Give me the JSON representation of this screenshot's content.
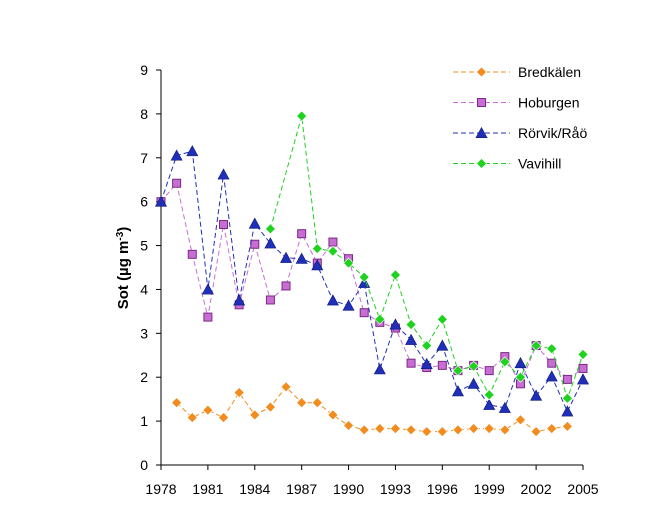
{
  "chart_data": {
    "type": "line",
    "title": "",
    "ylabel": "Sot (µg m-3)",
    "ylabel_parts": {
      "main": "Sot (µg m",
      "sup": "-3",
      "close": ")"
    },
    "xlabel": "",
    "xlim": [
      1978,
      2005
    ],
    "ylim": [
      0,
      9
    ],
    "x_ticks": [
      1978,
      1981,
      1984,
      1987,
      1990,
      1993,
      1996,
      1999,
      2002,
      2005
    ],
    "y_ticks": [
      0,
      1,
      2,
      3,
      4,
      5,
      6,
      7,
      8,
      9
    ],
    "grid": false,
    "legend_position": "top-right",
    "series": [
      {
        "name": "Bredkälen",
        "color": "#f28c1e",
        "marker": "diamond",
        "points": [
          [
            1979,
            1.42
          ],
          [
            1980,
            1.08
          ],
          [
            1981,
            1.25
          ],
          [
            1982,
            1.08
          ],
          [
            1983,
            1.65
          ],
          [
            1984,
            1.14
          ],
          [
            1985,
            1.32
          ],
          [
            1986,
            1.78
          ],
          [
            1987,
            1.42
          ],
          [
            1988,
            1.42
          ],
          [
            1989,
            1.14
          ],
          [
            1990,
            0.9
          ],
          [
            1991,
            0.8
          ],
          [
            1992,
            0.83
          ],
          [
            1993,
            0.83
          ],
          [
            1994,
            0.8
          ],
          [
            1995,
            0.76
          ],
          [
            1996,
            0.76
          ],
          [
            1997,
            0.8
          ],
          [
            1998,
            0.83
          ],
          [
            1999,
            0.83
          ],
          [
            2000,
            0.8
          ],
          [
            2001,
            1.03
          ],
          [
            2002,
            0.76
          ],
          [
            2003,
            0.83
          ],
          [
            2004,
            0.88
          ]
        ]
      },
      {
        "name": "Hoburgen",
        "color": "#c86ed2",
        "marker": "square",
        "points": [
          [
            1978,
            6.0
          ],
          [
            1979,
            6.42
          ],
          [
            1980,
            4.8
          ],
          [
            1981,
            3.37
          ],
          [
            1982,
            5.48
          ],
          [
            1983,
            3.65
          ],
          [
            1984,
            5.03
          ],
          [
            1985,
            3.76
          ],
          [
            1986,
            4.08
          ],
          [
            1987,
            5.27
          ],
          [
            1988,
            4.6
          ],
          [
            1989,
            5.08
          ],
          [
            1990,
            4.7
          ],
          [
            1991,
            3.47
          ],
          [
            1992,
            3.25
          ],
          [
            1993,
            3.12
          ],
          [
            1994,
            2.32
          ],
          [
            1995,
            2.22
          ],
          [
            1996,
            2.27
          ],
          [
            1997,
            2.15
          ],
          [
            1998,
            2.27
          ],
          [
            1999,
            2.15
          ],
          [
            2000,
            2.47
          ],
          [
            2001,
            1.85
          ],
          [
            2002,
            2.72
          ],
          [
            2003,
            2.32
          ],
          [
            2004,
            1.95
          ],
          [
            2005,
            2.2
          ]
        ]
      },
      {
        "name": "Rörvik/Råö",
        "color": "#1f2fb8",
        "marker": "triangle",
        "points": [
          [
            1978,
            6.0
          ],
          [
            1979,
            7.05
          ],
          [
            1980,
            7.15
          ],
          [
            1981,
            4.0
          ],
          [
            1982,
            6.62
          ],
          [
            1983,
            3.75
          ],
          [
            1984,
            5.5
          ],
          [
            1985,
            5.05
          ],
          [
            1986,
            4.72
          ],
          [
            1987,
            4.7
          ],
          [
            1988,
            4.55
          ],
          [
            1989,
            3.75
          ],
          [
            1990,
            3.63
          ],
          [
            1991,
            4.15
          ],
          [
            1992,
            2.18
          ],
          [
            1993,
            3.2
          ],
          [
            1994,
            2.85
          ],
          [
            1995,
            2.3
          ],
          [
            1996,
            2.72
          ],
          [
            1997,
            1.68
          ],
          [
            1998,
            1.85
          ],
          [
            1999,
            1.37
          ],
          [
            2000,
            1.3
          ],
          [
            2001,
            2.32
          ],
          [
            2002,
            1.58
          ],
          [
            2003,
            2.02
          ],
          [
            2004,
            1.22
          ],
          [
            2005,
            1.95
          ]
        ]
      },
      {
        "name": "Vavihill",
        "color": "#1fd21f",
        "marker": "diamond",
        "points": [
          [
            1985,
            5.38
          ],
          [
            1987,
            7.95
          ],
          [
            1988,
            4.93
          ],
          [
            1989,
            4.87
          ],
          [
            1990,
            4.6
          ],
          [
            1991,
            4.28
          ],
          [
            1992,
            3.32
          ],
          [
            1993,
            4.33
          ],
          [
            1994,
            3.2
          ],
          [
            1995,
            2.72
          ],
          [
            1996,
            3.32
          ],
          [
            1997,
            2.15
          ],
          [
            1998,
            2.25
          ],
          [
            1999,
            1.6
          ],
          [
            2000,
            2.35
          ],
          [
            2001,
            2.0
          ],
          [
            2002,
            2.72
          ],
          [
            2003,
            2.65
          ],
          [
            2004,
            1.52
          ],
          [
            2005,
            2.52
          ]
        ]
      }
    ]
  }
}
